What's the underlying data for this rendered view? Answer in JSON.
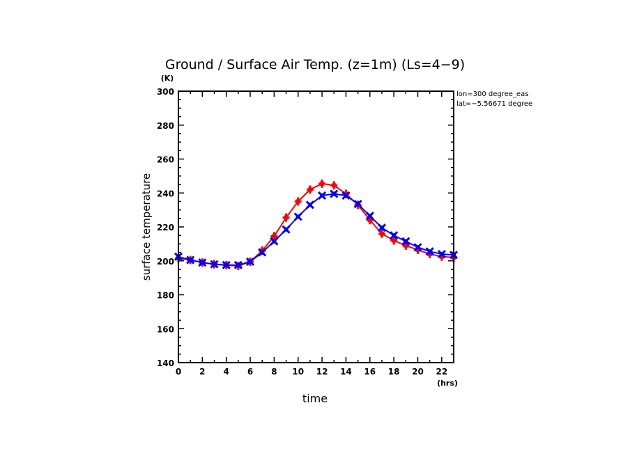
{
  "chart_data": {
    "type": "line",
    "title": "Ground / Surface Air Temp. (z=1m) (Ls=4−9)",
    "xlabel": "time",
    "xunit": "(hrs)",
    "ylabel": "surface temperature",
    "yunit": "(K)",
    "annotations": [
      "lon=300 degree_eas",
      "lat=−5.56671 degree"
    ],
    "xlim": [
      0,
      23
    ],
    "ylim": [
      140,
      300
    ],
    "xticks": [
      0,
      2,
      4,
      6,
      8,
      10,
      12,
      14,
      16,
      18,
      20,
      22
    ],
    "yticks": [
      140,
      160,
      180,
      200,
      220,
      240,
      260,
      280,
      300
    ],
    "x": [
      0,
      1,
      2,
      3,
      4,
      5,
      6,
      7,
      8,
      9,
      10,
      11,
      12,
      13,
      14,
      15,
      16,
      17,
      18,
      19,
      20,
      21,
      22,
      23
    ],
    "series": [
      {
        "name": "ground",
        "color": "#ff0000",
        "marker": "plus",
        "values": [
          201.5,
          200.5,
          199,
          198,
          197.5,
          197,
          199.5,
          206,
          214.5,
          225.5,
          235,
          242,
          245.5,
          244.5,
          239.5,
          233,
          224,
          216,
          212,
          209,
          206.5,
          204,
          202.5,
          202
        ]
      },
      {
        "name": "surface air",
        "color": "#0000ff",
        "marker": "x",
        "values": [
          202.5,
          200.5,
          199,
          198,
          197.5,
          197.5,
          199.5,
          205,
          211.5,
          218.5,
          226,
          233,
          238.5,
          239.5,
          238.5,
          233.5,
          226.5,
          219.5,
          215,
          211.5,
          208,
          205.5,
          204,
          203.5
        ]
      }
    ]
  }
}
